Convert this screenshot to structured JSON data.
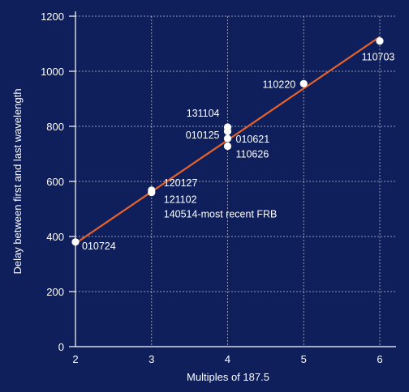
{
  "chart_data": {
    "type": "scatter",
    "title": "",
    "xlabel": "Multiples of 187.5",
    "ylabel": "Delay between first and last wavelength",
    "xlim": [
      2,
      6
    ],
    "ylim": [
      0,
      1200
    ],
    "xticks": [
      "2",
      "3",
      "4",
      "5",
      "6"
    ],
    "yticks": [
      "0",
      "200",
      "400",
      "600",
      "800",
      "1000",
      "1200"
    ],
    "grid": true,
    "points": [
      {
        "x": 2,
        "y": 380
      },
      {
        "x": 3,
        "y": 560
      },
      {
        "x": 3,
        "y": 568
      },
      {
        "x": 4,
        "y": 728
      },
      {
        "x": 4,
        "y": 756
      },
      {
        "x": 4,
        "y": 782
      },
      {
        "x": 4,
        "y": 797
      },
      {
        "x": 5,
        "y": 955
      },
      {
        "x": 6,
        "y": 1110
      }
    ],
    "fit_line": {
      "x": [
        2,
        6
      ],
      "y": [
        375,
        1125
      ],
      "color": "#e8632b"
    },
    "annotations": [
      {
        "text": "010724",
        "x": 2,
        "y": 380
      },
      {
        "text": "120127",
        "x": 3,
        "y": 568
      },
      {
        "text": "121102",
        "x": 3,
        "y": 560
      },
      {
        "text": "140514-most recent FRB",
        "x": 3,
        "y": 560
      },
      {
        "text": "131104",
        "x": 4,
        "y": 797
      },
      {
        "text": "010125",
        "x": 4,
        "y": 782
      },
      {
        "text": "010621",
        "x": 4,
        "y": 756
      },
      {
        "text": "110626",
        "x": 4,
        "y": 728
      },
      {
        "text": "110220",
        "x": 5,
        "y": 955
      },
      {
        "text": "110703",
        "x": 6,
        "y": 1110
      }
    ],
    "colors": {
      "background": "#0e1f5b",
      "points": "#ffffff",
      "line": "#e8632b",
      "text": "#ffffff"
    }
  }
}
